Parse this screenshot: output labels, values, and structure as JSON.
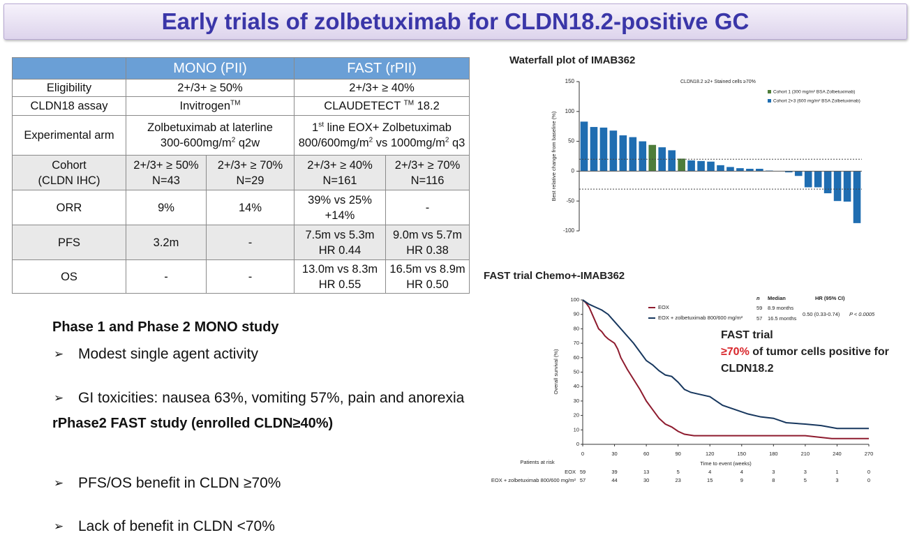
{
  "title": "Early trials of zolbetuximab for CLDN18.2-positive GC",
  "table": {
    "header": [
      "MONO (PII)",
      "FAST (rPII)"
    ],
    "rows": [
      [
        "Eligibility",
        "2+/3+ ≥ 50%",
        "2+/3+ ≥ 40%"
      ],
      [
        "CLDN18 assay",
        [
          [
            "Invitrogen",
            {
              "sup": "TM"
            }
          ]
        ],
        [
          [
            "CLAUDETECT ",
            {
              "sup": "TM"
            },
            " 18.2"
          ]
        ]
      ],
      [
        "Experimental arm",
        [
          [
            "Zolbetuximab at laterline"
          ],
          [
            "300-600mg/m",
            {
              "sup": "2"
            },
            " q2w"
          ]
        ],
        [
          [
            "1",
            {
              "sup": "st"
            },
            " line EOX+ Zolbetuximab"
          ],
          [
            "800/600mg/m",
            {
              "sup": "2"
            },
            " vs 1000mg/m",
            {
              "sup": "2"
            },
            " q3"
          ]
        ]
      ],
      [
        [
          "Cohort",
          "(CLDN IHC)"
        ],
        [
          "2+/3+ ≥ 50%",
          "N=43"
        ],
        [
          "2+/3+ ≥ 70%",
          "N=29"
        ],
        [
          "2+/3+ ≥ 40%",
          "N=161"
        ],
        [
          "2+/3+ ≥ 70%",
          "N=116"
        ]
      ],
      [
        "ORR",
        "9%",
        "14%",
        [
          "39% vs 25%",
          "+14%"
        ],
        "-"
      ],
      [
        "PFS",
        "3.2m",
        "-",
        [
          "7.5m vs 5.3m",
          "HR 0.44"
        ],
        [
          "9.0m vs 5.7m",
          "HR 0.38"
        ]
      ],
      [
        "OS",
        "-",
        "-",
        [
          "13.0m vs 8.3m",
          "HR 0.55"
        ],
        [
          "16.5m vs 8.9m",
          "HR 0.50"
        ]
      ]
    ]
  },
  "sections": [
    {
      "heading": "Phase 1 and Phase 2 MONO study",
      "bullets": [
        "Modest single agent activity",
        "GI toxicities: nausea 63%, vomiting 57%, pain and anorexia"
      ]
    },
    {
      "heading": "rPhase2 FAST study (enrolled CLDN≥40%)",
      "bullets": [
        "PFS/OS benefit in CLDN ≥70%",
        "Lack of benefit in CLDN <70%"
      ]
    }
  ],
  "chart_data": [
    {
      "type": "bar",
      "title": "Waterfall plot of IMAB362",
      "annotation": "CLDN18.2 ≥2+ Stained cells ≥70%",
      "ylabel": "Best relative change from baseline (%)",
      "categories": [
        null,
        null,
        null,
        null,
        null,
        null,
        null,
        null,
        null,
        null,
        null,
        null,
        null,
        null,
        null,
        null,
        null,
        null,
        null,
        null,
        null,
        null,
        null,
        null,
        null,
        null,
        null,
        null,
        null
      ],
      "series": [
        {
          "name": "Cohort 1 (300 mg/m² BSA Zolbetuximab)",
          "color": "#4e7d3a",
          "values": [
            null,
            null,
            null,
            null,
            null,
            null,
            null,
            44,
            null,
            null,
            21,
            null,
            null,
            null,
            null,
            null,
            null,
            null,
            null,
            null,
            null,
            null,
            null,
            null,
            null,
            null,
            null,
            null,
            null
          ]
        },
        {
          "name": "Cohort 2+3 (600 mg/m² BSA Zolbetuximab)",
          "color": "#1f6db1",
          "values": [
            83,
            74,
            73,
            68,
            60,
            57,
            50,
            null,
            40,
            35,
            null,
            18,
            17,
            16,
            10,
            7,
            5,
            4,
            4,
            1,
            0,
            -2,
            -8,
            -27,
            -27,
            -37,
            -50,
            -51,
            -87
          ]
        }
      ],
      "ylim": [
        -100,
        150
      ],
      "yticks": [
        150,
        100,
        50,
        0,
        -50,
        -100
      ],
      "reference_lines": [
        20,
        -30
      ]
    },
    {
      "type": "line",
      "title": "FAST trial  Chemo+-IMAB362",
      "xlabel": "Time to event (weeks)",
      "ylabel": "Overall survival (%)",
      "series": [
        {
          "name": "EOX",
          "color": "#8e1b2e",
          "n": 59,
          "median": "8.9 months",
          "x": [
            0,
            3,
            6,
            9,
            12,
            15,
            18,
            21,
            24,
            30,
            33,
            36,
            42,
            48,
            54,
            60,
            66,
            72,
            78,
            84,
            90,
            96,
            105,
            150,
            210,
            235,
            270
          ],
          "values": [
            100,
            98,
            95,
            90,
            85,
            80,
            78,
            75,
            73,
            70,
            66,
            60,
            52,
            45,
            38,
            30,
            24,
            18,
            14,
            12,
            9,
            7,
            6,
            6,
            6,
            4,
            4
          ],
          "at_risk": [
            59,
            39,
            13,
            5,
            4,
            4,
            3,
            3,
            1,
            0
          ]
        },
        {
          "name": "EOX + zolbetuximab 800/600 mg/m²",
          "color": "#17375e",
          "n": 57,
          "median": "16.5 months",
          "x": [
            0,
            6,
            12,
            18,
            24,
            30,
            36,
            42,
            48,
            54,
            60,
            66,
            72,
            78,
            84,
            90,
            96,
            102,
            108,
            120,
            132,
            144,
            156,
            168,
            180,
            192,
            210,
            225,
            240,
            270
          ],
          "values": [
            100,
            97,
            95,
            93,
            90,
            85,
            80,
            75,
            70,
            64,
            58,
            55,
            51,
            48,
            47,
            43,
            38,
            36,
            35,
            33,
            27,
            24,
            21,
            19,
            18,
            15,
            14,
            13,
            11,
            11
          ],
          "at_risk": [
            57,
            44,
            30,
            23,
            15,
            9,
            8,
            5,
            3,
            0
          ]
        }
      ],
      "stats_header": [
        "n",
        "Median",
        "HR (95% CI)"
      ],
      "hr": "0.50 (0.33-0.74)",
      "p": "P < 0.0005",
      "risk_title": "Patients at risk",
      "callout": {
        "title": "FAST trial",
        "highlight": "≥70%",
        "text": " of tumor cells positive for",
        "text2": "CLDN18.2"
      },
      "xlim": [
        0,
        270
      ],
      "ylim": [
        0,
        100
      ],
      "xticks": [
        0,
        30,
        60,
        90,
        120,
        150,
        180,
        210,
        240,
        270
      ],
      "yticks": [
        0,
        10,
        20,
        30,
        40,
        50,
        60,
        70,
        80,
        90,
        100
      ]
    }
  ]
}
